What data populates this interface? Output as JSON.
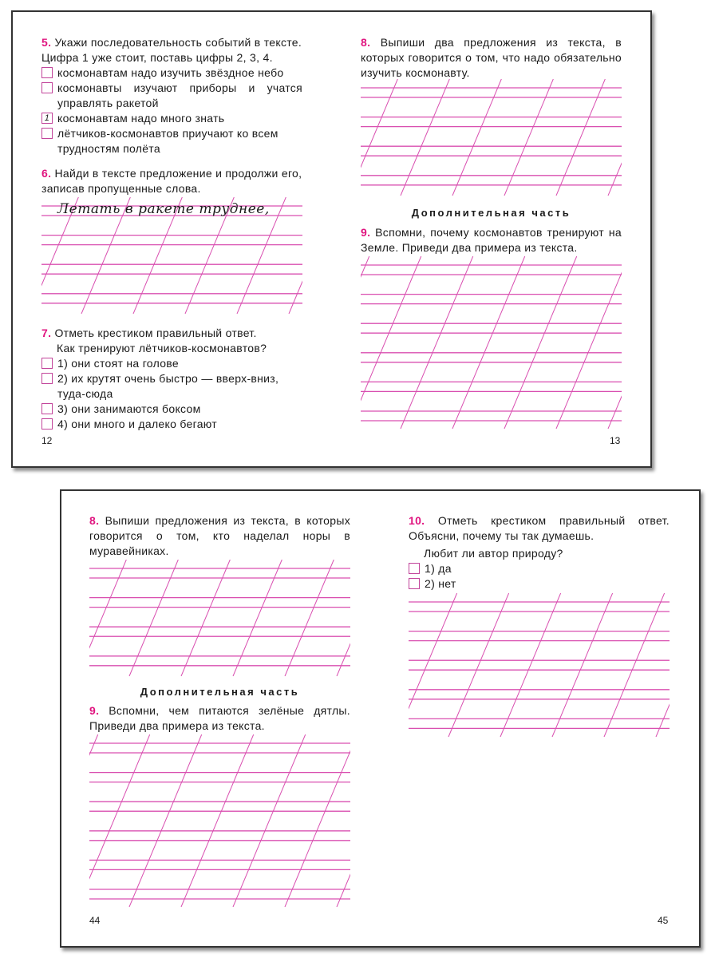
{
  "spread1": {
    "left": {
      "task5": {
        "num": "5.",
        "text": "Укажи последовательность событий в тексте. Цифра 1 уже стоит, поставь цифры 2, 3, 4.",
        "options": [
          {
            "mark": "",
            "text": "космонавтам надо изучить звёздное небо"
          },
          {
            "mark": "",
            "text": "космонавты изучают приборы и учатся управлять ракетой"
          },
          {
            "mark": "1",
            "text": "космонавтам надо много знать"
          },
          {
            "mark": "",
            "text": "лётчиков-космонавтов приучают ко всем трудностям полёта"
          }
        ]
      },
      "task6": {
        "num": "6.",
        "text": "Найди в тексте предложение и продолжи его, записав пропущенные слова.",
        "handwriting": "Летать в ракете труднее,"
      },
      "task7": {
        "num": "7.",
        "text": "Отметь крестиком правильный ответ.",
        "question": "Как тренируют лётчиков-космонавтов?",
        "options": [
          "1) они стоят на голове",
          "2) их крутят очень быстро — вверх-вниз, туда-сюда",
          "3) они занимаются боксом",
          "4) они много и далеко бегают"
        ]
      },
      "page_number": "12"
    },
    "right": {
      "task8": {
        "num": "8.",
        "text": "Выпиши два предложения из текста, в которых говорится о том, что надо обязательно изучить космонавту."
      },
      "extra": "Дополнительная часть",
      "task9": {
        "num": "9.",
        "text": "Вспомни, почему космонавтов тренируют на Земле. Приведи два примера из текста."
      },
      "page_number": "13"
    }
  },
  "spread2": {
    "left": {
      "task8": {
        "num": "8.",
        "text": "Выпиши предложения из текста, в которых говорится о том, кто наделал норы в муравейниках."
      },
      "extra": "Дополнительная часть",
      "task9": {
        "num": "9.",
        "text": "Вспомни, чем питаются зелёные дятлы. Приведи два примера из текста."
      },
      "page_number": "44"
    },
    "right": {
      "task10": {
        "num": "10.",
        "text": "Отметь крестиком правильный ответ. Объясни, почему ты так думаешь.",
        "question": "Любит ли автор природу?",
        "options": [
          "1) да",
          "2) нет"
        ]
      },
      "page_number": "45"
    }
  },
  "colors": {
    "accent": "#e0147f",
    "rule": "#d94fb0"
  }
}
